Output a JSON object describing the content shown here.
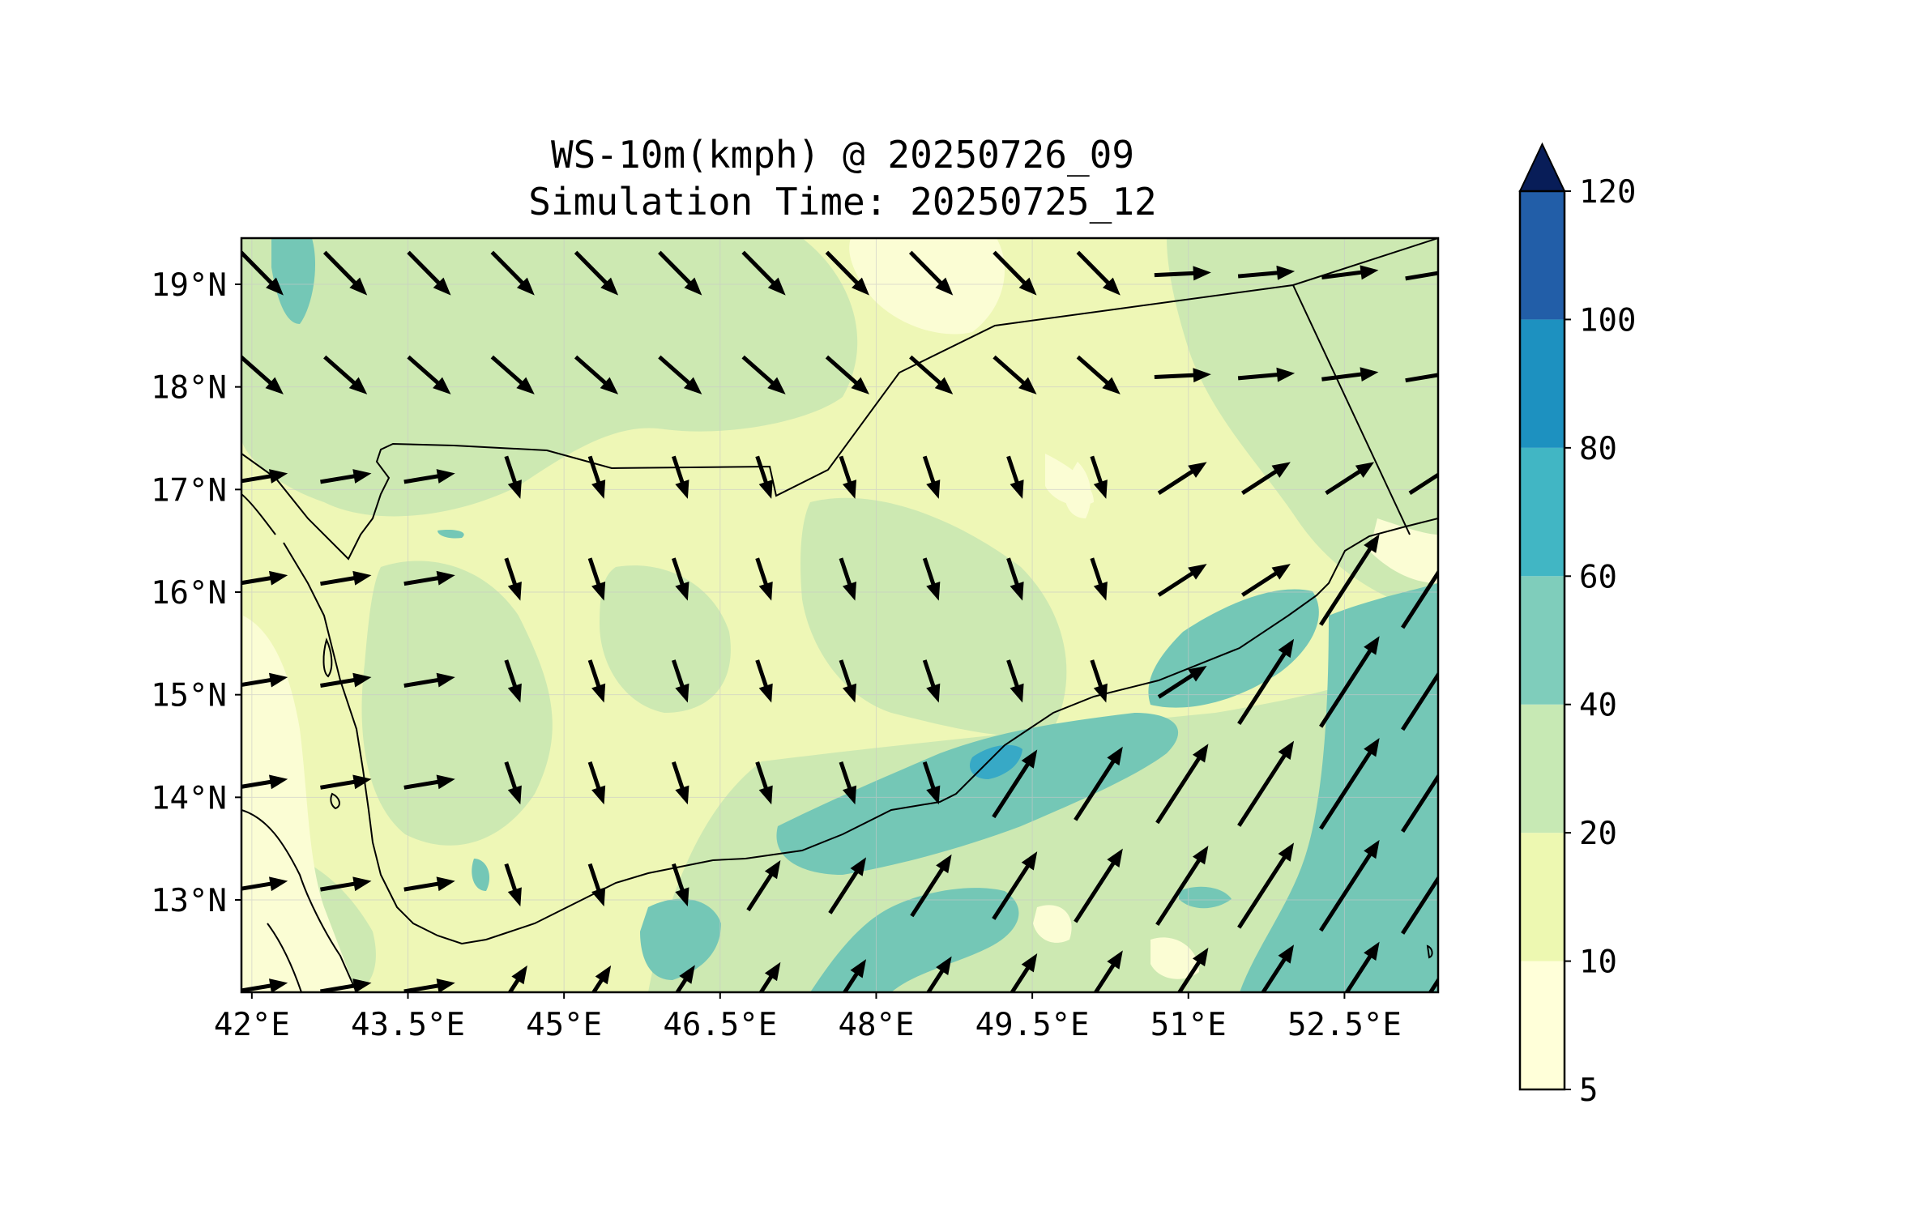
{
  "title": {
    "line1": "WS-10m(kmph) @ 20250726_09",
    "line2": "Simulation Time: 20250725_12"
  },
  "map": {
    "region": "Yemen / Gulf of Aden",
    "lon_range": [
      41.9,
      53.4
    ],
    "lat_range": [
      12.1,
      19.45
    ],
    "x_ticks": [
      "42°E",
      "43.5°E",
      "45°E",
      "46.5°E",
      "48°E",
      "49.5°E",
      "51°E",
      "52.5°E"
    ],
    "x_tick_values": [
      42,
      43.5,
      45,
      46.5,
      48,
      49.5,
      51,
      52.5
    ],
    "y_ticks": [
      "13°N",
      "14°N",
      "15°N",
      "16°N",
      "17°N",
      "18°N",
      "19°N"
    ],
    "y_tick_values": [
      13,
      14,
      15,
      16,
      17,
      18,
      19
    ],
    "gridlines": true
  },
  "colorbar": {
    "levels": [
      "5",
      "10",
      "20",
      "40",
      "60",
      "80",
      "100",
      "120"
    ],
    "colors": [
      "#ffffd9",
      "#edf8b1",
      "#c7e9b4",
      "#7fcdbb",
      "#41b6c4",
      "#1d91c0",
      "#225ea8",
      "#253494"
    ],
    "extend_color": "#081d58",
    "extend": "max"
  },
  "colors": {
    "land_base": "#eef7b6",
    "low_wind": "#fbfdd4",
    "moderate_wind": "#cde9b2",
    "high_wind": "#74c7b6",
    "very_high_wind": "#37a9c6",
    "vector": "#000000",
    "border": "#000000"
  },
  "vectors": {
    "description": "wind direction arrows at 10 m",
    "flow": "northwesterly over the north, southwesterly over the Gulf of Aden and Arabian Sea"
  }
}
